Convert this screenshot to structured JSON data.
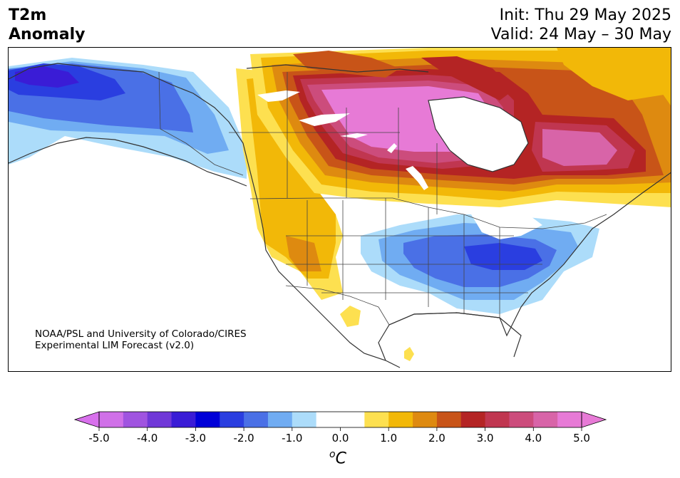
{
  "header": {
    "title_line1": "T2m",
    "title_line2": "Anomaly",
    "init_text": "Init: Thu 29 May 2025",
    "valid_text": "Valid: 24 May – 30 May"
  },
  "credit": {
    "line1": "NOAA/PSL and University of Colorado/CIRES",
    "line2": "Experimental LIM Forecast (v2.0)"
  },
  "colorbar": {
    "units": "°C",
    "units_sup": "o",
    "units_base": "C",
    "ticks": [
      "-5.0",
      "-4.0",
      "-3.0",
      "-2.0",
      "-1.0",
      "0.0",
      "1.0",
      "2.0",
      "3.0",
      "4.0",
      "5.0"
    ],
    "bins": [
      {
        "range": [
          -5.0,
          -4.5
        ],
        "color": "#d070e8"
      },
      {
        "range": [
          -4.5,
          -4.0
        ],
        "color": "#a054e0"
      },
      {
        "range": [
          -4.0,
          -3.5
        ],
        "color": "#7038d8"
      },
      {
        "range": [
          -3.5,
          -3.0
        ],
        "color": "#3a1cd6"
      },
      {
        "range": [
          -3.0,
          -2.5
        ],
        "color": "#0000d8"
      },
      {
        "range": [
          -2.5,
          -2.0
        ],
        "color": "#2a3ee0"
      },
      {
        "range": [
          -2.0,
          -1.5
        ],
        "color": "#4a70e6"
      },
      {
        "range": [
          -1.5,
          -1.0
        ],
        "color": "#70acf2"
      },
      {
        "range": [
          -1.0,
          -0.5
        ],
        "color": "#acdcfa"
      },
      {
        "range": [
          -0.5,
          0.5
        ],
        "color": "#ffffff"
      },
      {
        "range": [
          0.5,
          1.0
        ],
        "color": "#fde050"
      },
      {
        "range": [
          1.0,
          1.5
        ],
        "color": "#f2b808"
      },
      {
        "range": [
          1.5,
          2.0
        ],
        "color": "#de8a10"
      },
      {
        "range": [
          2.0,
          2.5
        ],
        "color": "#c85418"
      },
      {
        "range": [
          2.5,
          3.0
        ],
        "color": "#b42424"
      },
      {
        "range": [
          3.0,
          3.5
        ],
        "color": "#c03650"
      },
      {
        "range": [
          3.5,
          4.0
        ],
        "color": "#cc4c7c"
      },
      {
        "range": [
          4.0,
          4.5
        ],
        "color": "#d864a8"
      },
      {
        "range": [
          4.5,
          5.0
        ],
        "color": "#e77ad6"
      }
    ],
    "extend_min_color": "#d870ec",
    "extend_max_color": "#e77ad6"
  }
}
